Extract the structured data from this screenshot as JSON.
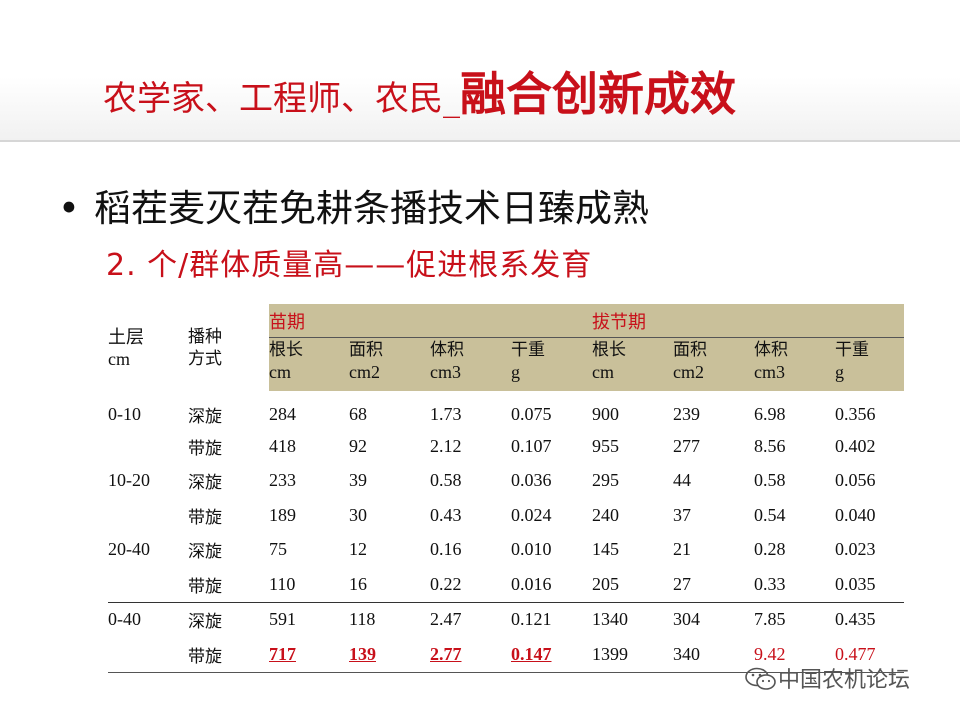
{
  "slide": {
    "title_part1": "农学家、工程师、农民_",
    "title_part2": "融合创新成效",
    "bullet": "稻茬麦灭茬免耕条播技术日臻成熟",
    "subtitle": "2. 个/群体质量高——促进根系发育"
  },
  "table": {
    "header_layer": [
      "土层",
      "cm"
    ],
    "header_method": [
      "播种",
      "方式"
    ],
    "period1": "苗期",
    "period2": "拔节期",
    "metrics": [
      [
        "根长",
        "cm"
      ],
      [
        "面积",
        "cm2"
      ],
      [
        "体积",
        "cm3"
      ],
      [
        "干重",
        "g"
      ],
      [
        "根长",
        "cm"
      ],
      [
        "面积",
        "cm2"
      ],
      [
        "体积",
        "cm3"
      ],
      [
        "干重",
        "g"
      ]
    ],
    "rows": [
      {
        "layer": "0-10",
        "method": "深旋",
        "values": [
          "284",
          "68",
          "1.73",
          "0.075",
          "900",
          "239",
          "6.98",
          "0.356"
        ]
      },
      {
        "layer": "",
        "method": "带旋",
        "values": [
          "418",
          "92",
          "2.12",
          "0.107",
          "955",
          "277",
          "8.56",
          "0.402"
        ]
      },
      {
        "layer": "10-20",
        "method": "深旋",
        "values": [
          "233",
          "39",
          "0.58",
          "0.036",
          "295",
          "44",
          "0.58",
          "0.056"
        ]
      },
      {
        "layer": "",
        "method": "带旋",
        "values": [
          "189",
          "30",
          "0.43",
          "0.024",
          "240",
          "37",
          "0.54",
          "0.040"
        ]
      },
      {
        "layer": "20-40",
        "method": "深旋",
        "values": [
          "75",
          "12",
          "0.16",
          "0.010",
          "145",
          "21",
          "0.28",
          "0.023"
        ]
      },
      {
        "layer": "",
        "method": "带旋",
        "values": [
          "110",
          "16",
          "0.22",
          "0.016",
          "205",
          "27",
          "0.33",
          "0.035"
        ]
      },
      {
        "layer": "0-40",
        "method": "深旋",
        "values": [
          "591",
          "118",
          "2.47",
          "0.121",
          "1340",
          "304",
          "7.85",
          "0.435"
        ]
      },
      {
        "layer": "",
        "method": "带旋",
        "values": [
          "717",
          "139",
          "2.77",
          "0.147",
          "1399",
          "340",
          "9.42",
          "0.477"
        ]
      }
    ]
  },
  "watermark": {
    "text": "中国农机论坛",
    "icon": "wechat-icon"
  },
  "colors": {
    "accent_red": "#c8101a",
    "header_shade": "#c9c09a"
  }
}
